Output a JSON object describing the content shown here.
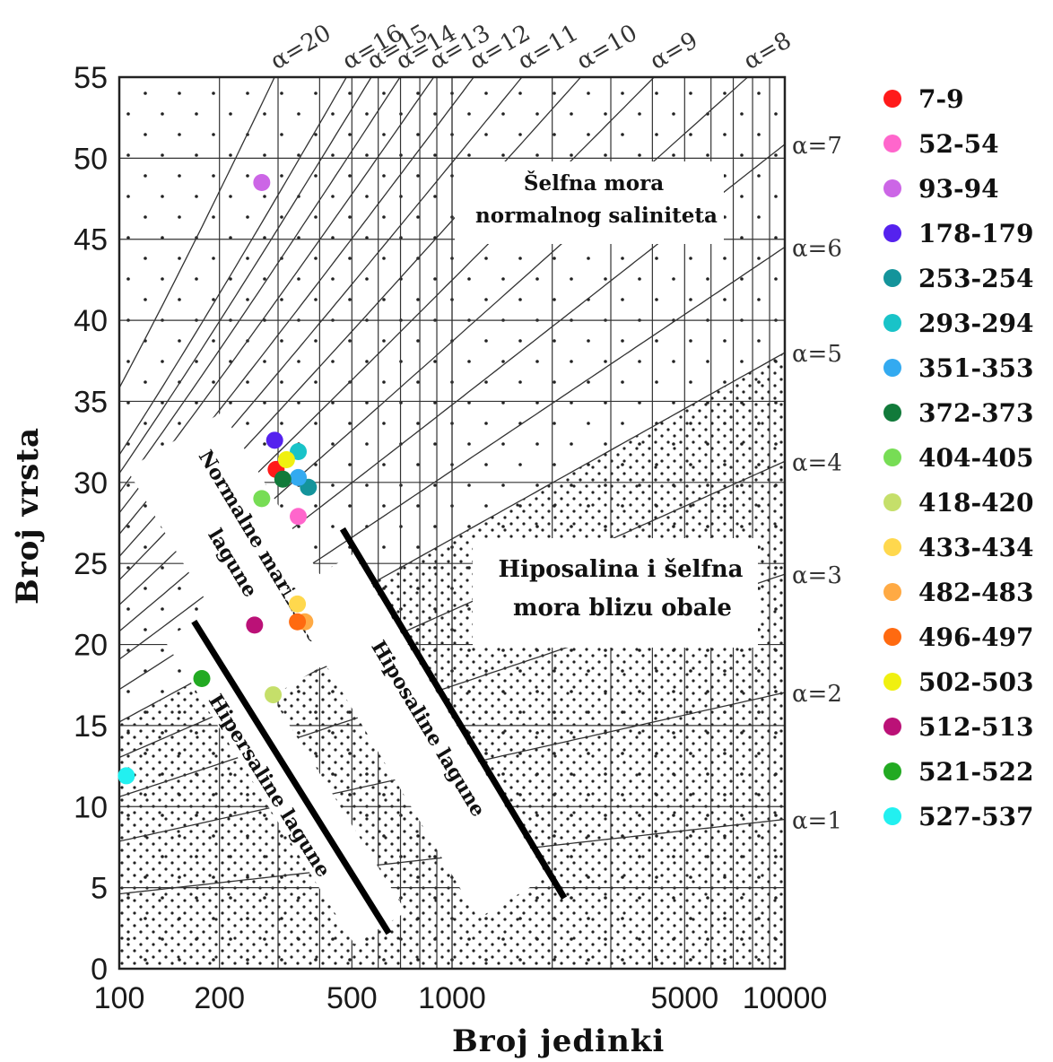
{
  "chart_data": {
    "type": "scatter",
    "xlabel": "Broj jedinki",
    "ylabel": "Broj vrsta",
    "x_scale": "log",
    "xlim": [
      100,
      10000
    ],
    "ylim": [
      0,
      55
    ],
    "x_ticks": [
      "100",
      "200",
      "500",
      "1000",
      "5000",
      "10000"
    ],
    "x_tick_values": [
      100,
      200,
      500,
      1000,
      5000,
      10000
    ],
    "y_ticks": [
      "0",
      "5",
      "10",
      "15",
      "20",
      "25",
      "30",
      "35",
      "40",
      "45",
      "50",
      "55"
    ],
    "y_tick_values": [
      0,
      5,
      10,
      15,
      20,
      25,
      30,
      35,
      40,
      45,
      50,
      55
    ],
    "alpha_lines": [
      {
        "label": "α=1",
        "alpha": 1
      },
      {
        "label": "α=2",
        "alpha": 2
      },
      {
        "label": "α=3",
        "alpha": 3
      },
      {
        "label": "α=4",
        "alpha": 4
      },
      {
        "label": "α=5",
        "alpha": 5
      },
      {
        "label": "α=6",
        "alpha": 6
      },
      {
        "label": "α=7",
        "alpha": 7
      },
      {
        "label": "α=8",
        "alpha": 8
      },
      {
        "label": "α=9",
        "alpha": 9
      },
      {
        "label": "α=10",
        "alpha": 10
      },
      {
        "label": "α=11",
        "alpha": 11
      },
      {
        "label": "α=12",
        "alpha": 12
      },
      {
        "label": "α=13",
        "alpha": 13
      },
      {
        "label": "α=14",
        "alpha": 14
      },
      {
        "label": "α=15",
        "alpha": 15
      },
      {
        "label": "α=16",
        "alpha": 16
      },
      {
        "label": "α=20",
        "alpha": 20
      }
    ],
    "regions": [
      {
        "lines": [
          "Šelfna mora",
          "normalnog saliniteta"
        ]
      },
      {
        "lines": [
          "Hiposalina i šelfna",
          "mora blizu obale"
        ]
      },
      {
        "lines": [
          "Normalne marinske",
          "lagune"
        ]
      },
      {
        "lines": [
          "Hipersaline lagune"
        ]
      },
      {
        "lines": [
          "Hiposaline lagune"
        ]
      }
    ],
    "series": [
      {
        "name": "7-9",
        "color": "#ff1a1a",
        "x": 296,
        "y": 30.8
      },
      {
        "name": "52-54",
        "color": "#ff66cc",
        "x": 345,
        "y": 27.9
      },
      {
        "name": "93-94",
        "color": "#cc66e6",
        "x": 268,
        "y": 48.5
      },
      {
        "name": "178-179",
        "color": "#5522ee",
        "x": 293,
        "y": 32.6
      },
      {
        "name": "253-254",
        "color": "#14949b",
        "x": 370,
        "y": 29.7
      },
      {
        "name": "293-294",
        "color": "#19c3c8",
        "x": 345,
        "y": 31.9
      },
      {
        "name": "351-353",
        "color": "#33aaf0",
        "x": 345,
        "y": 30.3
      },
      {
        "name": "372-373",
        "color": "#117a3a",
        "x": 310,
        "y": 30.2
      },
      {
        "name": "404-405",
        "color": "#77dd55",
        "x": 268,
        "y": 29.0
      },
      {
        "name": "418-420",
        "color": "#c5df6a",
        "x": 290,
        "y": 16.9
      },
      {
        "name": "433-434",
        "color": "#ffd84d",
        "x": 343,
        "y": 22.5
      },
      {
        "name": "482-483",
        "color": "#ffaa44",
        "x": 361,
        "y": 21.4
      },
      {
        "name": "496-497",
        "color": "#ff6a10",
        "x": 343,
        "y": 21.4
      },
      {
        "name": "502-503",
        "color": "#f0f010",
        "x": 318,
        "y": 31.4
      },
      {
        "name": "512-513",
        "color": "#bb1177",
        "x": 255,
        "y": 21.2
      },
      {
        "name": "521-522",
        "color": "#22aa22",
        "x": 177,
        "y": 17.9
      },
      {
        "name": "527-537",
        "color": "#22f0f0",
        "x": 105,
        "y": 11.9
      }
    ]
  }
}
